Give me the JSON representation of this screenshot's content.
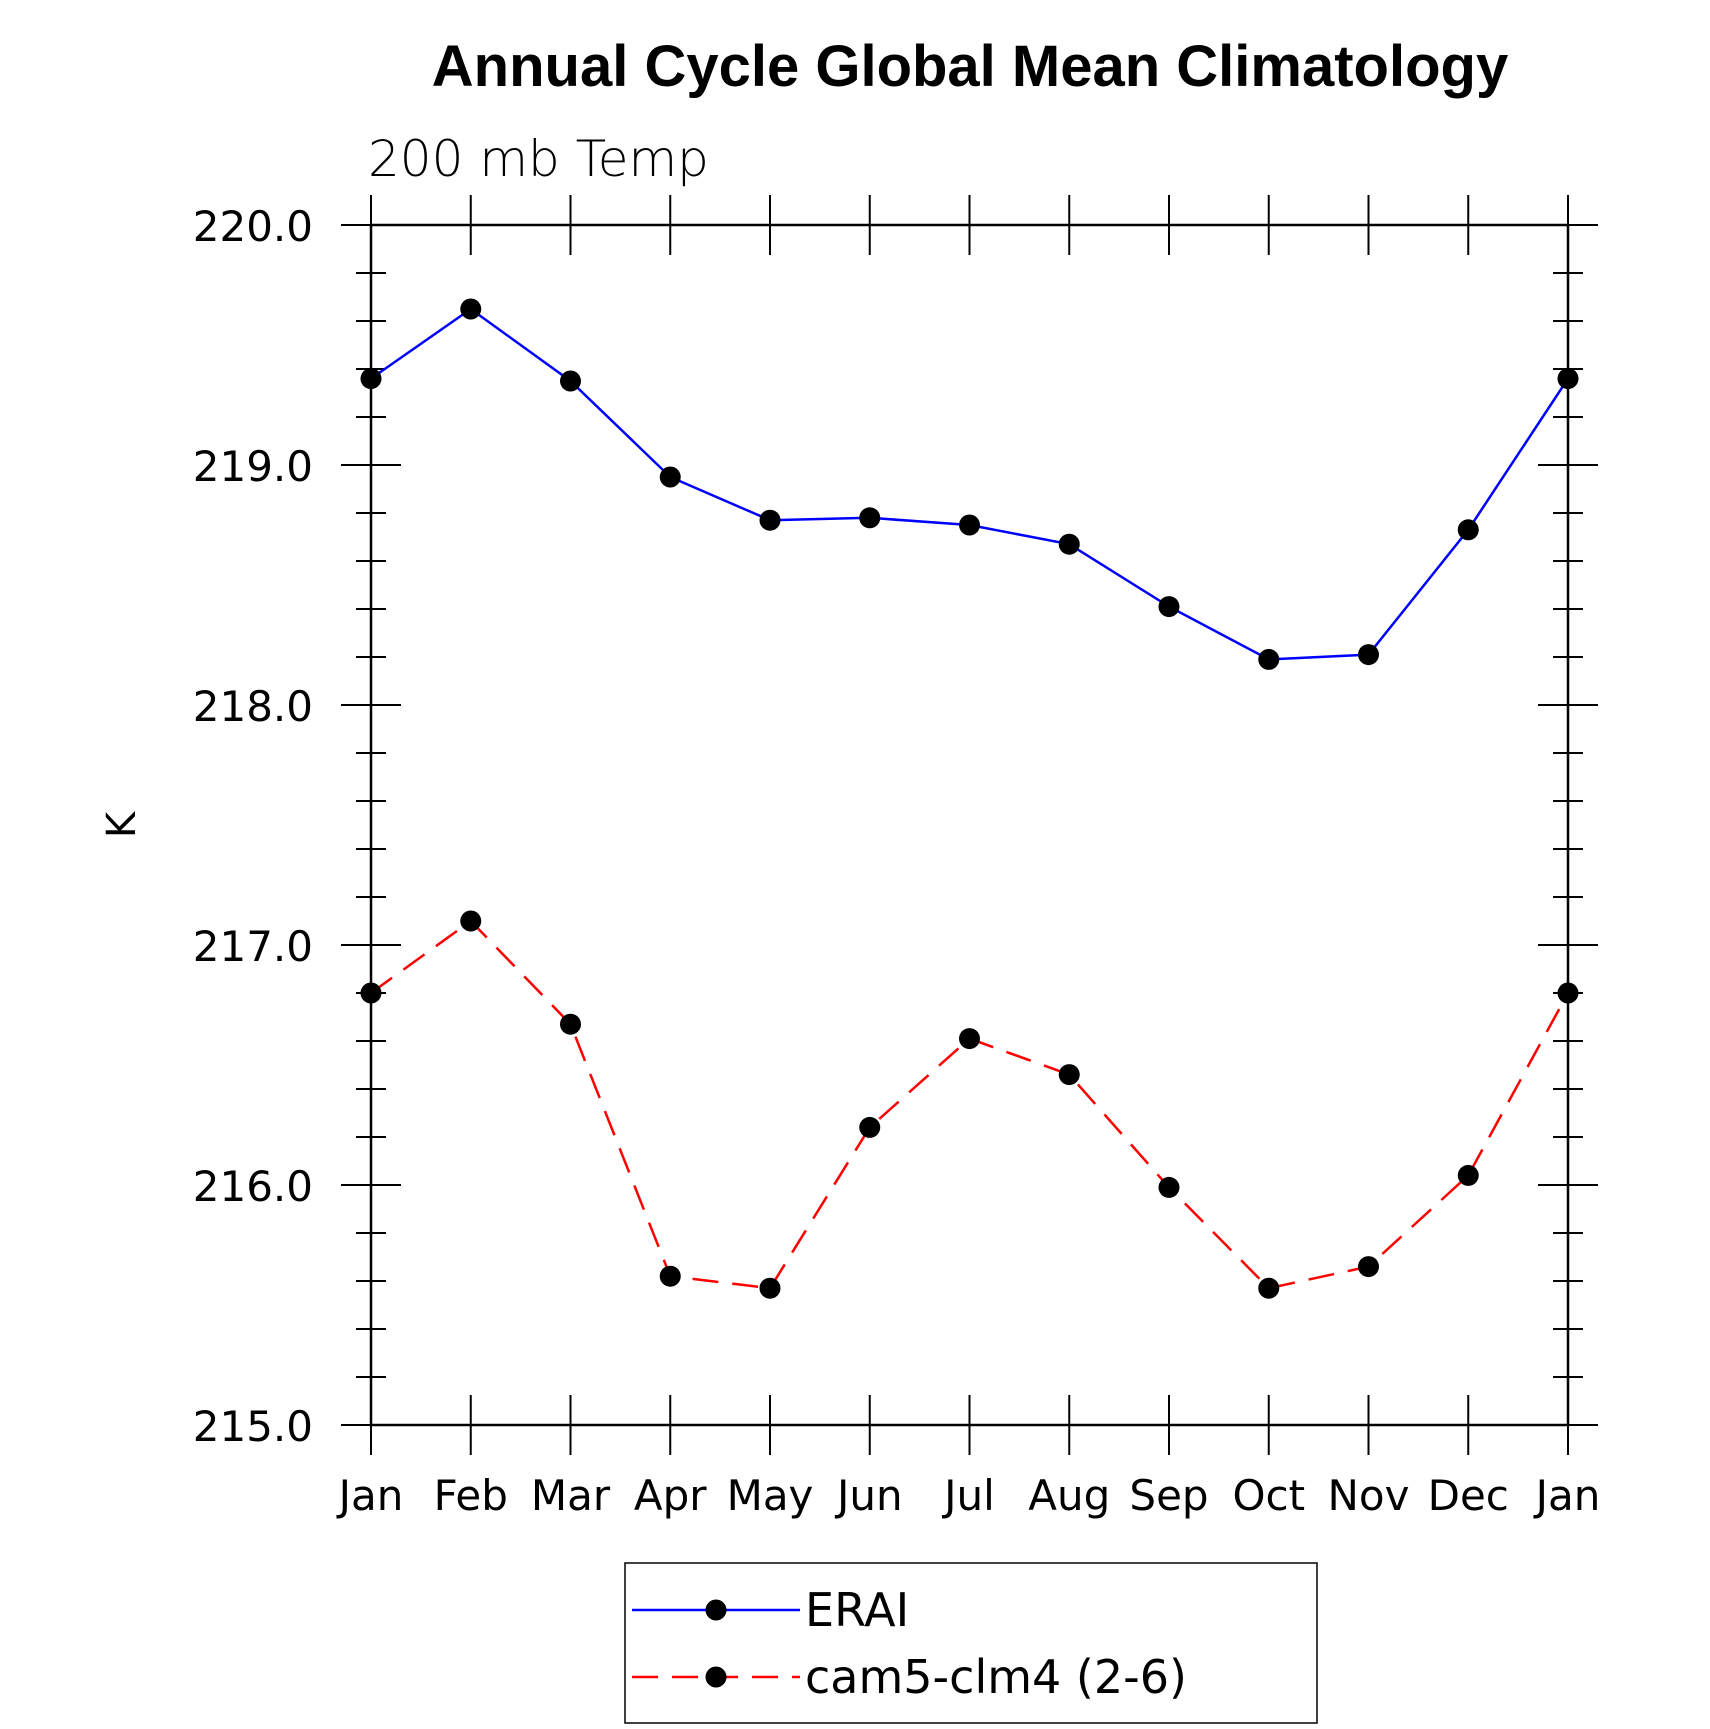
{
  "chart_data": {
    "type": "line",
    "title": "Annual Cycle Global Mean Climatology",
    "subtitle": "200 mb Temp",
    "xlabel": "",
    "ylabel": "K",
    "categories": [
      "Jan",
      "Feb",
      "Mar",
      "Apr",
      "May",
      "Jun",
      "Jul",
      "Aug",
      "Sep",
      "Oct",
      "Nov",
      "Dec",
      "Jan"
    ],
    "ylim": [
      215.0,
      220.0
    ],
    "yticks": [
      "215.0",
      "216.0",
      "217.0",
      "218.0",
      "219.0",
      "220.0"
    ],
    "grid": false,
    "legend_position": "bottom-center",
    "series": [
      {
        "name": "ERAI",
        "color": "#0000ff",
        "dash": "solid",
        "values": [
          219.36,
          219.65,
          219.35,
          218.95,
          218.77,
          218.78,
          218.75,
          218.67,
          218.41,
          218.19,
          218.21,
          218.73,
          219.36
        ]
      },
      {
        "name": "cam5-clm4 (2-6)",
        "color": "#ff0000",
        "dash": "dashed",
        "values": [
          216.8,
          217.1,
          216.67,
          215.62,
          215.57,
          216.24,
          216.61,
          216.46,
          215.99,
          215.57,
          215.66,
          216.04,
          216.8
        ]
      }
    ]
  }
}
